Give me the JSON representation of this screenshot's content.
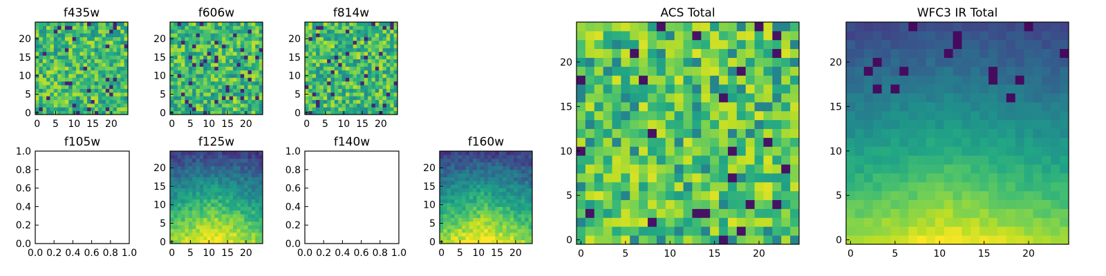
{
  "chart_data": [
    {
      "type": "heatmap",
      "title": "f435w",
      "colormap": "viridis",
      "grid_size": [
        25,
        25
      ],
      "pattern": "noise",
      "seed": 11,
      "xlim": [
        0,
        24
      ],
      "ylim": [
        0,
        24
      ],
      "xticks": [
        "0",
        "5",
        "10",
        "15",
        "20"
      ],
      "yticks": [
        "0",
        "5",
        "10",
        "15",
        "20"
      ]
    },
    {
      "type": "heatmap",
      "title": "f606w",
      "colormap": "viridis",
      "grid_size": [
        25,
        25
      ],
      "pattern": "noise",
      "seed": 23,
      "xlim": [
        0,
        24
      ],
      "ylim": [
        0,
        24
      ],
      "xticks": [
        "0",
        "5",
        "10",
        "15",
        "20"
      ],
      "yticks": [
        "0",
        "5",
        "10",
        "15",
        "20"
      ]
    },
    {
      "type": "heatmap",
      "title": "f814w",
      "colormap": "viridis",
      "grid_size": [
        25,
        25
      ],
      "pattern": "noise",
      "seed": 37,
      "xlim": [
        0,
        24
      ],
      "ylim": [
        0,
        24
      ],
      "xticks": [
        "0",
        "5",
        "10",
        "15",
        "20"
      ],
      "yticks": [
        "0",
        "5",
        "10",
        "15",
        "20"
      ]
    },
    {
      "type": "heatmap",
      "title": "f105w",
      "empty": true,
      "xlim": [
        0,
        1
      ],
      "ylim": [
        0,
        1
      ],
      "xticks": [
        "0.0",
        "0.2",
        "0.4",
        "0.6",
        "0.8",
        "1.0"
      ],
      "yticks": [
        "0.0",
        "0.2",
        "0.4",
        "0.6",
        "0.8",
        "1.0"
      ]
    },
    {
      "type": "heatmap",
      "title": "f125w",
      "colormap": "viridis",
      "grid_size": [
        25,
        25
      ],
      "pattern": "gradient",
      "seed": 53,
      "xlim": [
        0,
        24
      ],
      "ylim": [
        0,
        24
      ],
      "xticks": [
        "0",
        "5",
        "10",
        "15",
        "20"
      ],
      "yticks": [
        "0",
        "5",
        "10",
        "15",
        "20"
      ]
    },
    {
      "type": "heatmap",
      "title": "f140w",
      "empty": true,
      "xlim": [
        0,
        1
      ],
      "ylim": [
        0,
        1
      ],
      "xticks": [
        "0.0",
        "0.2",
        "0.4",
        "0.6",
        "0.8",
        "1.0"
      ],
      "yticks": [
        "0.0",
        "0.2",
        "0.4",
        "0.6",
        "0.8",
        "1.0"
      ]
    },
    {
      "type": "heatmap",
      "title": "f160w",
      "colormap": "viridis",
      "grid_size": [
        25,
        25
      ],
      "pattern": "gradient",
      "seed": 71,
      "xlim": [
        0,
        24
      ],
      "ylim": [
        0,
        24
      ],
      "xticks": [
        "0",
        "5",
        "10",
        "15",
        "20"
      ],
      "yticks": [
        "0",
        "5",
        "10",
        "15",
        "20"
      ]
    },
    {
      "type": "heatmap",
      "title": "ACS Total",
      "colormap": "viridis",
      "grid_size": [
        25,
        25
      ],
      "pattern": "noise_bright",
      "seed": 89,
      "xlim": [
        0,
        24
      ],
      "ylim": [
        0,
        24
      ],
      "xticks": [
        "0",
        "5",
        "10",
        "15",
        "20"
      ],
      "yticks": [
        "0",
        "5",
        "10",
        "15",
        "20"
      ]
    },
    {
      "type": "heatmap",
      "title": "WFC3 IR Total",
      "colormap": "viridis",
      "grid_size": [
        25,
        25
      ],
      "pattern": "gradient_smooth",
      "seed": 97,
      "xlim": [
        0,
        24
      ],
      "ylim": [
        0,
        24
      ],
      "xticks": [
        "0",
        "5",
        "10",
        "15",
        "20"
      ],
      "yticks": [
        "0",
        "5",
        "10",
        "15",
        "20"
      ]
    }
  ]
}
